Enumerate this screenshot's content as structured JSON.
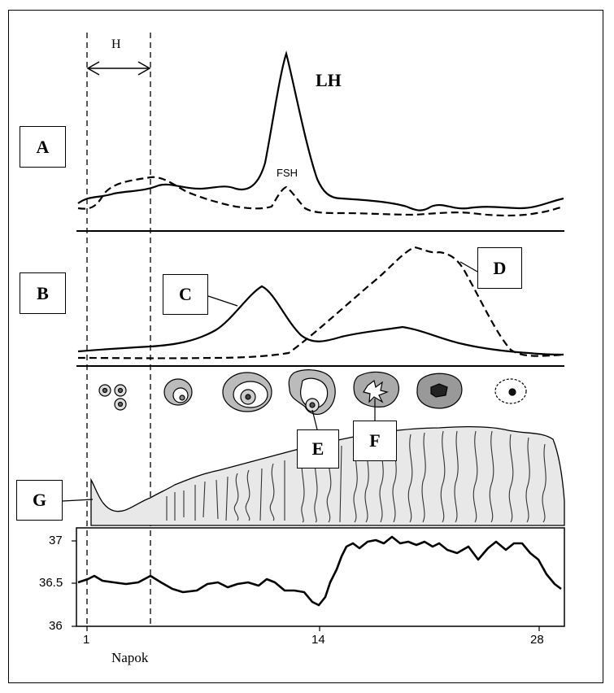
{
  "labels": {
    "H": "H",
    "LH": "LH",
    "FSH": "FSH",
    "A": "A",
    "B": "B",
    "C": "C",
    "D": "D",
    "E": "E",
    "F": "F",
    "G": "G"
  },
  "temperature_axis": {
    "ticks": [
      "37",
      "36.5",
      "36"
    ]
  },
  "day_axis": {
    "ticks": [
      "1",
      "14",
      "28"
    ],
    "label": "Napok"
  }
}
